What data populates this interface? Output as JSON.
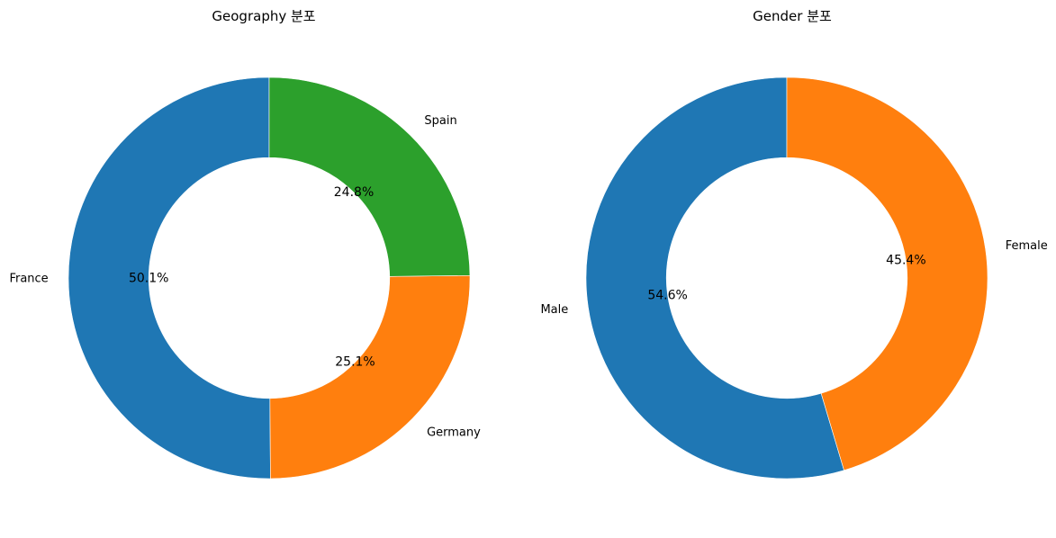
{
  "chart_data": [
    {
      "type": "pie",
      "title": "Geography 분포",
      "labels": [
        "France",
        "Germany",
        "Spain"
      ],
      "values": [
        50.1,
        25.1,
        24.8
      ],
      "value_labels": [
        "50.1%",
        "25.1%",
        "24.8%"
      ],
      "colors": [
        "#1f77b4",
        "#ff7f0e",
        "#2ca02c"
      ],
      "donut": true,
      "start_angle": "top",
      "direction": "counterclockwise"
    },
    {
      "type": "pie",
      "title": "Gender 분포",
      "labels": [
        "Male",
        "Female"
      ],
      "values": [
        54.6,
        45.4
      ],
      "value_labels": [
        "54.6%",
        "45.4%"
      ],
      "colors": [
        "#1f77b4",
        "#ff7f0e"
      ],
      "donut": true,
      "start_angle": "top",
      "direction": "counterclockwise"
    }
  ]
}
